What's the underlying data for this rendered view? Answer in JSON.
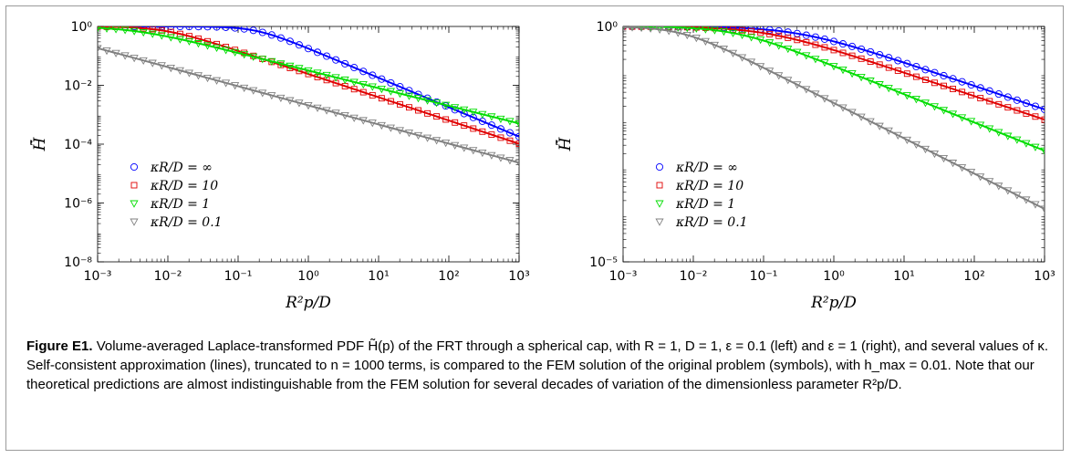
{
  "caption": {
    "label": "Figure E1.",
    "text": "Volume-averaged Laplace-transformed PDF H̃(p) of the FRT through a spherical cap, with R = 1, D = 1, ε = 0.1 (left) and ε = 1 (right), and several values of κ. Self-consistent approximation (lines), truncated to n = 1000 terms, is compared to the FEM solution of the original problem (symbols), with h_max = 0.01. Note that our theoretical predictions are almost indistinguishable from the FEM solution for several decades of variation of the dimensionless parameter R²p/D."
  },
  "chart_data": [
    {
      "type": "line",
      "panel": "left",
      "xlabel": "R²p/D",
      "ylabel": "H̃̄",
      "xscale": "log",
      "yscale": "log",
      "xlim": [
        0.001,
        1000
      ],
      "ylim": [
        1e-08,
        1
      ],
      "xticks": [
        "10⁻³",
        "10⁻²",
        "10⁻¹",
        "10⁰",
        "10¹",
        "10²",
        "10³"
      ],
      "yticks": [
        "10⁻⁸",
        "10⁻⁶",
        "10⁻⁴",
        "10⁻²",
        "10⁰"
      ],
      "legend_position": "lower-left",
      "series": [
        {
          "name": "κR/D = ∞",
          "color": "#0000ff",
          "marker": "circle",
          "asymptote_c": 0.18,
          "slope": 1.0,
          "y0": 1.0
        },
        {
          "name": "κR/D = 10",
          "color": "#e00000",
          "marker": "square",
          "asymptote_c": 0.009,
          "slope": 0.79,
          "y0": 1.0
        },
        {
          "name": "κR/D = 1",
          "color": "#00dd00",
          "marker": "triangle-down",
          "asymptote_c": 0.0032,
          "slope": 0.6,
          "y0": 1.0
        },
        {
          "name": "κR/D = 0.1",
          "color": "#808080",
          "marker": "triangle-down",
          "asymptote_c": 7.5e-05,
          "slope": 0.65,
          "y0": 1.0
        }
      ]
    },
    {
      "type": "line",
      "panel": "right",
      "xlabel": "R²p/D",
      "ylabel": "H̃̄",
      "xscale": "log",
      "yscale": "log",
      "xlim": [
        0.001,
        1000
      ],
      "ylim": [
        1e-05,
        1
      ],
      "xticks": [
        "10⁻³",
        "10⁻²",
        "10⁻¹",
        "10⁰",
        "10¹",
        "10²",
        "10³"
      ],
      "yticks": [
        "10⁻⁵",
        "10⁰"
      ],
      "legend_position": "lower-left",
      "series": [
        {
          "name": "κR/D = ∞",
          "color": "#0000ff",
          "marker": "circle",
          "asymptote_c": 0.3,
          "slope": 0.5,
          "y0": 1.0
        },
        {
          "name": "κR/D = 10",
          "color": "#e00000",
          "marker": "square",
          "asymptote_c": 0.11,
          "slope": 0.5,
          "y0": 1.0
        },
        {
          "name": "κR/D = 1",
          "color": "#00dd00",
          "marker": "triangle-down",
          "asymptote_c": 0.04,
          "slope": 0.6,
          "y0": 1.0
        },
        {
          "name": "κR/D = 0.1",
          "color": "#808080",
          "marker": "triangle-down",
          "asymptote_c": 0.0068,
          "slope": 0.75,
          "y0": 1.0
        }
      ]
    }
  ]
}
